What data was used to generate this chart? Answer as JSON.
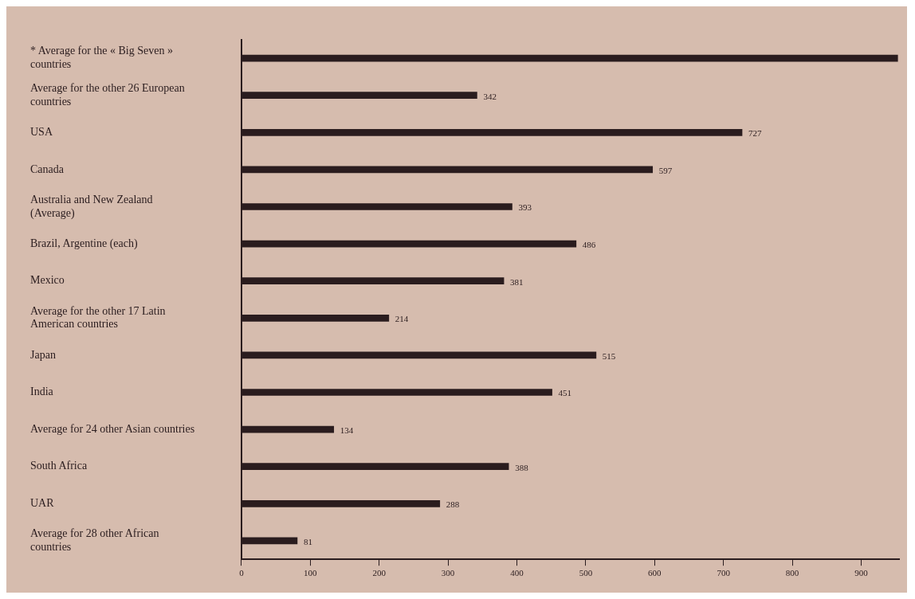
{
  "chart_data": {
    "type": "bar",
    "orientation": "horizontal",
    "categories": [
      "* Average for the « Big Seven » countries",
      "Average for the other 26 European countries",
      "USA",
      "Canada",
      "Australia and New Zealand (Average)",
      "Brazil, Argentine (each)",
      "Mexico",
      "Average for the other 17 Latin American countries",
      "Japan",
      "India",
      "Average for 24 other Asian countries",
      "South Africa",
      "UAR",
      "Average for 28 other African countries"
    ],
    "values": [
      953,
      342,
      727,
      597,
      393,
      486,
      381,
      214,
      515,
      451,
      134,
      388,
      288,
      81
    ],
    "value_labels": [
      null,
      "342",
      "727",
      "597",
      "393",
      "486",
      "381",
      "214",
      "515",
      "451",
      "134",
      "388",
      "288",
      "81"
    ],
    "color": "#2a1c1e",
    "xlim": [
      0,
      955
    ],
    "xticks": [
      0,
      100,
      200,
      300,
      400,
      500,
      600,
      700,
      800,
      900
    ],
    "grid": false,
    "legend": false
  }
}
